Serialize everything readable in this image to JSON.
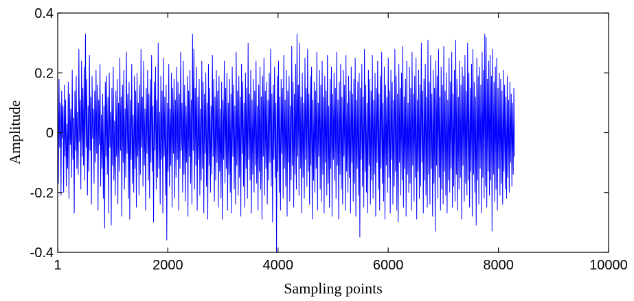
{
  "chart_data": {
    "type": "line",
    "title": "",
    "xlabel": "Sampling points",
    "ylabel": "Amplitude",
    "xlim": [
      1,
      10000
    ],
    "ylim": [
      -0.4,
      0.4
    ],
    "x_ticks": [
      {
        "value": 1,
        "label": "1"
      },
      {
        "value": 2000,
        "label": "2000"
      },
      {
        "value": 4000,
        "label": "4000"
      },
      {
        "value": 6000,
        "label": "6000"
      },
      {
        "value": 8000,
        "label": "8000"
      },
      {
        "value": 10000,
        "label": "10000"
      }
    ],
    "y_ticks": [
      {
        "value": 0.4,
        "label": "0.4"
      },
      {
        "value": 0.2,
        "label": "0.2"
      },
      {
        "value": 0,
        "label": "0"
      },
      {
        "value": -0.2,
        "label": "-0.2"
      },
      {
        "value": -0.4,
        "label": "-0.4"
      }
    ],
    "grid": false,
    "series": [
      {
        "color": "#0000ff",
        "x_start": 1,
        "x_step": 12,
        "values": [
          0.12,
          -0.17,
          0.18,
          -0.05,
          0.1,
          -0.21,
          0.14,
          -0.02,
          0.09,
          -0.2,
          0.16,
          -0.08,
          0.11,
          -0.18,
          0.03,
          -0.12,
          0.17,
          -0.22,
          0.13,
          -0.04,
          0.08,
          -0.15,
          0.21,
          -0.09,
          0.05,
          -0.27,
          0.14,
          -0.06,
          0.19,
          -0.12,
          0.07,
          -0.14,
          0.28,
          -0.03,
          0.11,
          -0.19,
          0.24,
          -0.08,
          0.15,
          -0.11,
          0.22,
          -0.16,
          0.33,
          -0.05,
          0.18,
          -0.21,
          0.09,
          -0.13,
          0.26,
          -0.06,
          0.12,
          -0.24,
          0.19,
          -0.02,
          0.08,
          -0.17,
          0.14,
          -0.1,
          0.21,
          -0.07,
          0.16,
          -0.26,
          0.11,
          -0.04,
          0.23,
          -0.18,
          0.06,
          -0.12,
          0.13,
          -0.22,
          0.09,
          -0.32,
          0.17,
          -0.08,
          0.19,
          -0.14,
          0.12,
          -0.27,
          0.2,
          -0.05,
          0.07,
          -0.31,
          0.15,
          -0.11,
          0.22,
          -0.16,
          0.04,
          -0.21,
          0.14,
          -0.08,
          0.18,
          -0.24,
          0.1,
          -0.13,
          0.25,
          -0.06,
          0.12,
          -0.28,
          0.16,
          -0.1,
          0.21,
          -0.19,
          0.08,
          -0.15,
          0.27,
          -0.07,
          0.13,
          -0.22,
          0.17,
          -0.29,
          0.11,
          -0.09,
          0.23,
          -0.17,
          0.06,
          -0.2,
          0.19,
          -0.12,
          0.14,
          -0.25,
          0.2,
          -0.08,
          0.1,
          -0.21,
          0.16,
          -0.14,
          0.28,
          -0.05,
          0.12,
          -0.18,
          0.24,
          -0.11,
          0.08,
          -0.26,
          0.15,
          -0.07,
          0.21,
          -0.16,
          0.13,
          -0.22,
          0.18,
          -0.1,
          0.26,
          -0.13,
          0.09,
          -0.3,
          0.17,
          -0.06,
          0.22,
          -0.19,
          0.11,
          -0.15,
          0.3,
          -0.12,
          0.07,
          -0.24,
          0.19,
          -0.09,
          0.14,
          -0.27,
          0.25,
          -0.08,
          0.12,
          -0.21,
          0.16,
          -0.36,
          0.1,
          -0.13,
          0.23,
          -0.18,
          0.08,
          -0.11,
          0.2,
          -0.25,
          0.15,
          -0.07,
          0.18,
          -0.22,
          0.11,
          -0.15,
          0.22,
          -0.09,
          0.17,
          -0.26,
          0.13,
          -0.12,
          0.27,
          -0.06,
          0.1,
          -0.2,
          0.24,
          -0.14,
          0.16,
          -0.23,
          0.09,
          -0.1,
          0.19,
          -0.28,
          0.14,
          -0.08,
          0.21,
          -0.17,
          0.11,
          -0.24,
          0.33,
          -0.06,
          0.28,
          -0.19,
          0.15,
          -0.11,
          0.22,
          -0.26,
          0.12,
          -0.09,
          0.18,
          -0.21,
          0.08,
          -0.16,
          0.24,
          -0.12,
          0.17,
          -0.27,
          0.13,
          -0.07,
          0.2,
          -0.18,
          0.1,
          -0.29,
          0.23,
          -0.11,
          0.15,
          -0.2,
          0.09,
          -0.14,
          0.26,
          -0.08,
          0.18,
          -0.23,
          0.12,
          -0.16,
          0.21,
          -0.1,
          0.14,
          -0.25,
          0.19,
          -0.13,
          0.08,
          -0.22,
          0.17,
          -0.29,
          0.11,
          -0.09,
          0.24,
          -0.17,
          0.15,
          -0.12,
          0.2,
          -0.26,
          0.1,
          -0.14,
          0.18,
          -0.2,
          0.13,
          -0.27,
          0.22,
          -0.08,
          0.16,
          -0.19,
          0.09,
          -0.24,
          0.27,
          -0.11,
          0.14,
          -0.21,
          0.19,
          -0.15,
          0.12,
          -0.28,
          0.23,
          -0.07,
          0.17,
          -0.18,
          0.1,
          -0.25,
          0.2,
          -0.12,
          0.15,
          -0.22,
          0.3,
          -0.09,
          0.13,
          -0.16,
          0.21,
          -0.27,
          0.11,
          -0.14,
          0.18,
          -0.2,
          0.14,
          -0.11,
          0.24,
          -0.17,
          0.09,
          -0.26,
          0.16,
          -0.13,
          0.22,
          -0.19,
          0.12,
          -0.29,
          0.19,
          -0.08,
          0.25,
          -0.21,
          0.14,
          -0.12,
          0.17,
          -0.24,
          0.11,
          -0.16,
          0.2,
          -0.1,
          0.28,
          -0.18,
          0.13,
          -0.3,
          0.16,
          -0.09,
          0.22,
          -0.15,
          0.1,
          -0.41,
          0.19,
          -0.13,
          0.24,
          -0.2,
          0.12,
          -0.26,
          0.18,
          -0.07,
          0.15,
          -0.22,
          0.26,
          -0.12,
          0.11,
          -0.18,
          0.21,
          -0.28,
          0.14,
          -0.1,
          0.19,
          -0.23,
          0.09,
          -0.16,
          0.29,
          -0.11,
          0.17,
          -0.25,
          0.13,
          -0.14,
          0.23,
          -0.19,
          0.33,
          -0.08,
          0.16,
          -0.21,
          0.3,
          -0.12,
          0.12,
          -0.27,
          0.2,
          -0.15,
          0.1,
          -0.22,
          0.25,
          -0.09,
          0.15,
          -0.18,
          0.28,
          -0.13,
          0.13,
          -0.24,
          0.19,
          -0.11,
          0.22,
          -0.29,
          0.11,
          -0.16,
          0.17,
          -0.2,
          0.14,
          -0.12,
          0.27,
          -0.26,
          0.1,
          -0.08,
          0.21,
          -0.19,
          0.16,
          -0.23,
          0.24,
          -0.14,
          0.12,
          -0.27,
          0.19,
          -0.1,
          0.14,
          -0.21,
          0.26,
          -0.17,
          0.09,
          -0.25,
          0.18,
          -0.12,
          0.22,
          -0.28,
          0.13,
          -0.09,
          0.2,
          -0.16,
          0.15,
          -0.22,
          0.27,
          -0.11,
          0.11,
          -0.29,
          0.17,
          -0.14,
          0.23,
          -0.19,
          0.12,
          -0.24,
          0.21,
          -0.08,
          0.16,
          -0.26,
          0.26,
          -0.13,
          0.1,
          -0.2,
          0.19,
          -0.15,
          0.14,
          -0.27,
          0.22,
          -0.1,
          0.13,
          -0.23,
          0.18,
          -0.17,
          0.25,
          -0.28,
          0.11,
          -0.12,
          0.17,
          -0.21,
          0.2,
          -0.35,
          0.15,
          -0.09,
          0.23,
          -0.18,
          0.12,
          -0.25,
          0.28,
          -0.13,
          0.16,
          -0.2,
          0.1,
          -0.27,
          0.21,
          -0.11,
          0.18,
          -0.24,
          0.14,
          -0.16,
          0.26,
          -0.22,
          0.11,
          -0.14,
          0.2,
          -0.28,
          0.15,
          -0.1,
          0.24,
          -0.19,
          0.13,
          -0.26,
          0.19,
          -0.12,
          0.27,
          -0.17,
          0.1,
          -0.23,
          0.22,
          -0.29,
          0.16,
          -0.11,
          0.12,
          -0.2,
          0.25,
          -0.15,
          0.14,
          -0.27,
          0.21,
          -0.09,
          0.17,
          -0.24,
          0.11,
          -0.18,
          0.28,
          -0.13,
          0.19,
          -0.26,
          0.13,
          -0.3,
          0.23,
          -0.1,
          0.15,
          -0.21,
          0.2,
          -0.16,
          0.29,
          -0.25,
          0.12,
          -0.12,
          0.18,
          -0.28,
          0.24,
          -0.14,
          0.1,
          -0.2,
          0.22,
          -0.17,
          0.15,
          -0.26,
          0.27,
          -0.11,
          0.13,
          -0.23,
          0.19,
          -0.15,
          0.25,
          -0.29,
          0.11,
          -0.13,
          0.21,
          -0.22,
          0.16,
          -0.18,
          0.3,
          -0.1,
          0.14,
          -0.27,
          0.18,
          -0.16,
          0.23,
          -0.21,
          0.12,
          -0.25,
          0.31,
          -0.14,
          0.17,
          -0.24,
          0.26,
          -0.12,
          0.13,
          -0.28,
          0.21,
          -0.17,
          0.15,
          -0.33,
          0.24,
          -0.11,
          0.19,
          -0.22,
          0.28,
          -0.15,
          0.12,
          -0.26,
          0.22,
          -0.19,
          0.16,
          -0.24,
          0.29,
          -0.13,
          0.14,
          -0.21,
          0.2,
          -0.27,
          0.11,
          -0.16,
          0.25,
          -0.2,
          0.17,
          -0.12,
          0.27,
          -0.25,
          0.13,
          -0.18,
          0.21,
          -0.23,
          0.31,
          -0.14,
          0.18,
          -0.26,
          0.12,
          -0.19,
          0.24,
          -0.15,
          0.16,
          -0.29,
          0.22,
          -0.11,
          0.19,
          -0.23,
          0.26,
          -0.17,
          0.14,
          -0.21,
          0.3,
          -0.16,
          0.2,
          -0.25,
          0.15,
          -0.13,
          0.23,
          -0.28,
          0.28,
          -0.14,
          0.17,
          -0.2,
          0.12,
          -0.31,
          0.25,
          -0.16,
          0.19,
          -0.24,
          0.22,
          -0.12,
          0.16,
          -0.27,
          0.27,
          -0.15,
          0.21,
          -0.22,
          0.33,
          -0.18,
          0.32,
          -0.25,
          0.18,
          -0.13,
          0.24,
          -0.21,
          0.26,
          -0.16,
          0.19,
          -0.33,
          0.28,
          -0.14,
          0.17,
          -0.23,
          0.22,
          -0.19,
          0.25,
          -0.26,
          0.15,
          -0.12,
          0.2,
          -0.21,
          0.18,
          -0.17,
          0.14,
          -0.24,
          0.21,
          -0.13,
          0.16,
          -0.19,
          0.12,
          -0.22,
          0.19,
          -0.15,
          0.11,
          -0.2,
          0.17,
          -0.1,
          0.13,
          -0.18,
          0.1,
          -0.14,
          0.15,
          -0.08
        ]
      }
    ]
  }
}
